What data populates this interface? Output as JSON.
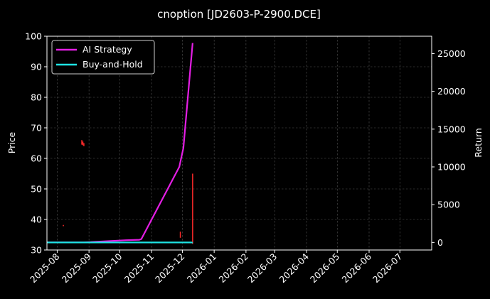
{
  "chart_data": {
    "type": "line",
    "title": "cnoption [JD2603-P-2900.DCE]",
    "ylabel": "Price",
    "y2label": "Return",
    "ylim": [
      30,
      100
    ],
    "y2lim": [
      -1000,
      27300
    ],
    "y_ticks": [
      30,
      40,
      50,
      60,
      70,
      80,
      90,
      100
    ],
    "y2_ticks": [
      0,
      5000,
      10000,
      15000,
      20000,
      25000
    ],
    "x_range": [
      "2025-07-22",
      "2026-08-01"
    ],
    "x_ticks": [
      "2025-08",
      "2025-09",
      "2025-10",
      "2025-11",
      "2025-12",
      "2026-01",
      "2026-02",
      "2026-03",
      "2026-04",
      "2026-05",
      "2026-06",
      "2026-07"
    ],
    "grid": true,
    "legend_position": "top-left",
    "colors": {
      "background": "#000000",
      "ai_strategy": "#e41ee4",
      "buy_and_hold": "#1ee4e4",
      "price_bars": "#ff2a2a",
      "grid": "#555555"
    },
    "series": [
      {
        "name": "AI Strategy",
        "axis": "right",
        "points": [
          {
            "x": "2025-07-22",
            "y": 0
          },
          {
            "x": "2025-08-27",
            "y": 0
          },
          {
            "x": "2025-10-07",
            "y": 300
          },
          {
            "x": "2025-10-20",
            "y": 350
          },
          {
            "x": "2025-10-22",
            "y": 450
          },
          {
            "x": "2025-11-28",
            "y": 10000
          },
          {
            "x": "2025-12-02",
            "y": 12500
          },
          {
            "x": "2025-12-11",
            "y": 26400
          }
        ]
      },
      {
        "name": "Buy-and-Hold",
        "axis": "right",
        "points": [
          {
            "x": "2025-07-22",
            "y": 0
          },
          {
            "x": "2025-12-10",
            "y": 0
          },
          {
            "x": "2025-12-11",
            "y": -50
          }
        ]
      }
    ],
    "price_bars": [
      {
        "x": "2025-08-07",
        "low": 37.8,
        "high": 38.2
      },
      {
        "x": "2025-08-25",
        "low": 64.5,
        "high": 66
      },
      {
        "x": "2025-08-26",
        "low": 64.3,
        "high": 65.5
      },
      {
        "x": "2025-08-27",
        "low": 64,
        "high": 65
      },
      {
        "x": "2025-11-29",
        "low": 34,
        "high": 36
      },
      {
        "x": "2025-12-11",
        "low": 32,
        "high": 55
      }
    ]
  }
}
